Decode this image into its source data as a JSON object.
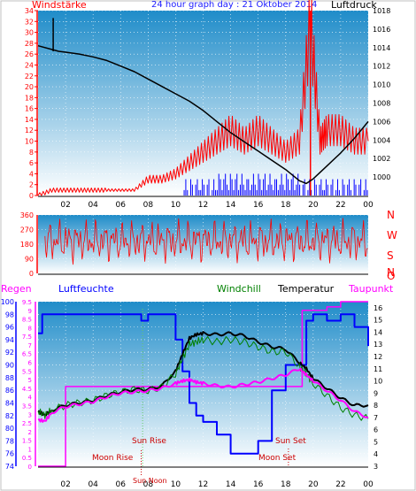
{
  "title": "24 hour graph day : 21 Oktober 2014",
  "colors": {
    "wind_avg": "#ff0000",
    "wind_gust": "#0000ff",
    "pressure": "#000000",
    "rain": "#ff00ff",
    "humidity": "#0000ff",
    "temperature": "#000000",
    "windchill": "#008000",
    "dewpoint": "#ff00ff",
    "bg_top": "#1e8ccc",
    "bg_bottom": "#ffffff"
  },
  "chart_data": [
    {
      "type": "line",
      "left_label": "Windstärke",
      "right_label": "Luftdruck",
      "x_ticks": [
        "02",
        "04",
        "06",
        "08",
        "10",
        "12",
        "14",
        "16",
        "18",
        "20",
        "22",
        "00"
      ],
      "y_left_ticks": [
        "0",
        "2",
        "4",
        "6",
        "8",
        "10",
        "12",
        "14",
        "16",
        "18",
        "20",
        "22",
        "24",
        "26",
        "28",
        "30",
        "32",
        "34"
      ],
      "y_right_ticks": [
        "1000",
        "1002",
        "1004",
        "1006",
        "1008",
        "1010",
        "1012",
        "1014",
        "1016",
        "1018"
      ],
      "y_left_lim": [
        0,
        34
      ],
      "y_right_lim": [
        998,
        1018
      ],
      "series": [
        {
          "name": "Windstärke",
          "axis": "left",
          "x": [
            0,
            1,
            2,
            3,
            4,
            5,
            6,
            7,
            8,
            9,
            10,
            11,
            12,
            13,
            14,
            15,
            16,
            17,
            18,
            19,
            19.8,
            20.5,
            21,
            22,
            23,
            24
          ],
          "y": [
            0,
            1,
            1,
            1,
            1,
            1,
            1,
            1,
            3,
            3,
            4,
            6,
            8,
            10,
            12,
            10,
            12,
            10,
            8,
            10,
            32,
            10,
            12,
            12,
            10,
            10
          ]
        },
        {
          "name": "Luftdruck",
          "axis": "right",
          "x": [
            0,
            1,
            1.5,
            2,
            3,
            4,
            5,
            6,
            7,
            8,
            9,
            10,
            11,
            12,
            13,
            14,
            15,
            16,
            17,
            18,
            19,
            19.5,
            20,
            21,
            22,
            23,
            24
          ],
          "y": [
            1014.2,
            1013.8,
            1013.6,
            1013.5,
            1013.3,
            1013.0,
            1012.6,
            1012.0,
            1011.4,
            1010.6,
            1009.8,
            1009.0,
            1008.2,
            1007.2,
            1006.0,
            1004.8,
            1003.8,
            1002.8,
            1001.8,
            1000.8,
            999.6,
            999.3,
            999.8,
            1001.2,
            1002.6,
            1004.2,
            1006.0
          ]
        }
      ]
    },
    {
      "type": "scatter",
      "right_labels": [
        "N",
        "W",
        "S",
        "O",
        "N"
      ],
      "y_ticks": [
        "0",
        "90",
        "180",
        "270",
        "360"
      ],
      "ylim": [
        0,
        360
      ],
      "x_ticks": [
        "02",
        "04",
        "06",
        "08",
        "10",
        "12",
        "14",
        "16",
        "18",
        "20",
        "22",
        "00"
      ],
      "series": [
        {
          "name": "Windrichtung",
          "x": [
            0,
            24
          ],
          "y": [
            180,
            270
          ]
        }
      ]
    },
    {
      "type": "line",
      "x_ticks": [
        "02",
        "04",
        "06",
        "08",
        "10",
        "12",
        "14",
        "16",
        "18",
        "20",
        "22",
        "00"
      ],
      "y_left_ticks_rain": [
        "0",
        "0.5",
        "1",
        "1.5",
        "2",
        "2.5",
        "3",
        "3.5",
        "4",
        "4.5",
        "5",
        "5.5",
        "6",
        "6.5",
        "7",
        "7.5",
        "8",
        "8.5",
        "9",
        "9.5"
      ],
      "y_left_ticks_humidity": [
        "74",
        "76",
        "78",
        "80",
        "82",
        "84",
        "86",
        "88",
        "90",
        "92",
        "94",
        "96",
        "98",
        "100"
      ],
      "y_right_ticks": [
        "3",
        "4",
        "5",
        "6",
        "7",
        "8",
        "9",
        "10",
        "11",
        "12",
        "13",
        "14",
        "15",
        "16"
      ],
      "rain_lim": [
        0,
        9.5
      ],
      "humidity_lim": [
        74,
        100
      ],
      "temp_lim": [
        3,
        16.5
      ],
      "labels": {
        "regen": "Regen",
        "luftfeuchte": "Luftfeuchte",
        "windchill": "Windchill",
        "temperatur": "Temperatur",
        "taupunkt": "Taupunkt"
      },
      "annotations": {
        "sunrise": "Sun Rise",
        "sunset": "Sun Set",
        "moonrise": "Moon Rise",
        "moonset": "Moon Set",
        "noon": "Sun Noon"
      },
      "series": [
        {
          "name": "Regen",
          "x": [
            0,
            1,
            2,
            3,
            4,
            5,
            6,
            7,
            8,
            9,
            10,
            11,
            12,
            13,
            14,
            15,
            16,
            17,
            18,
            19,
            19.2,
            20,
            21,
            22,
            23,
            24
          ],
          "y": [
            0,
            0,
            4.6,
            4.6,
            4.6,
            4.6,
            4.6,
            4.6,
            4.6,
            4.6,
            4.6,
            4.6,
            4.6,
            4.6,
            4.6,
            4.6,
            4.6,
            4.6,
            4.6,
            4.6,
            9.0,
            9.0,
            9.2,
            9.5,
            9.5,
            9.5
          ]
        },
        {
          "name": "Luftfeuchte",
          "x": [
            0,
            0.3,
            1,
            2,
            3,
            4,
            5,
            6,
            7,
            7.5,
            8,
            9,
            10,
            10.5,
            11,
            11.5,
            12,
            13,
            14,
            15,
            16,
            17,
            18,
            19,
            19.5,
            20,
            21,
            22,
            23,
            24
          ],
          "y": [
            95,
            98,
            98,
            98,
            98,
            98,
            98,
            98,
            98,
            97,
            98,
            98,
            94,
            89,
            84,
            82,
            81,
            79,
            76,
            76,
            78,
            86,
            90,
            90,
            97,
            98,
            97,
            98,
            96,
            93
          ]
        },
        {
          "name": "Temperatur",
          "x": [
            0,
            0.5,
            1,
            2,
            3,
            4,
            5,
            6,
            7,
            8,
            9,
            10,
            10.5,
            11,
            11.5,
            12,
            13,
            14,
            15,
            16,
            17,
            18,
            19,
            19.5,
            20,
            21,
            22,
            23,
            24
          ],
          "y": [
            7.5,
            7.2,
            7.6,
            8.0,
            8.2,
            8.4,
            8.8,
            9.1,
            9.3,
            9.3,
            9.6,
            10.8,
            12.2,
            13.5,
            13.8,
            13.9,
            13.8,
            13.9,
            13.7,
            13.2,
            12.8,
            12.6,
            11.5,
            11.0,
            10.2,
            9.4,
            8.6,
            8.0,
            8.0
          ]
        },
        {
          "name": "Windchill",
          "x": [
            0,
            0.5,
            1,
            2,
            3,
            4,
            5,
            6,
            7,
            8,
            9,
            10,
            10.5,
            11,
            11.5,
            12,
            13,
            14,
            15,
            16,
            17,
            18,
            19,
            19.5,
            20,
            21,
            22,
            23,
            24
          ],
          "y": [
            7.5,
            7.2,
            7.6,
            8.0,
            8.2,
            8.4,
            8.8,
            9.1,
            9.3,
            9.2,
            9.5,
            10.6,
            11.8,
            13.0,
            13.2,
            13.4,
            13.2,
            13.4,
            13.2,
            12.8,
            12.4,
            12.4,
            11.2,
            10.6,
            9.8,
            8.8,
            7.8,
            7.2,
            6.9
          ]
        },
        {
          "name": "Taupunkt",
          "x": [
            0,
            0.5,
            1,
            2,
            3,
            4,
            5,
            6,
            7,
            8,
            9,
            10,
            10.5,
            11,
            11.5,
            12,
            13,
            14,
            15,
            16,
            17,
            18,
            19,
            19.5,
            20,
            21,
            22,
            23,
            24
          ],
          "y": [
            6.8,
            6.7,
            7.4,
            7.9,
            8.1,
            8.3,
            8.7,
            9.0,
            9.1,
            9.2,
            9.4,
            9.8,
            10.0,
            10.1,
            9.9,
            9.8,
            9.6,
            9.5,
            9.7,
            9.9,
            10.2,
            10.5,
            11.0,
            10.5,
            10.0,
            9.2,
            8.4,
            7.5,
            7.0
          ]
        }
      ]
    }
  ]
}
